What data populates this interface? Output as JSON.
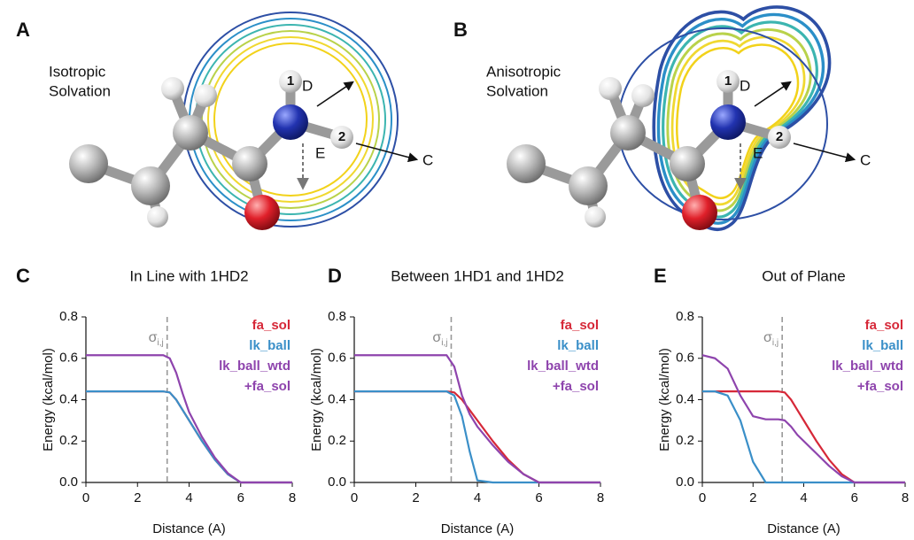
{
  "panels": [
    {
      "label": "A",
      "title": [
        "Isotropic",
        "Solvation"
      ],
      "atoms": [
        "1",
        "2"
      ],
      "directions": [
        "D",
        "C",
        "E"
      ]
    },
    {
      "label": "B",
      "title": [
        "Anisotropic",
        "Solvation"
      ],
      "atoms": [
        "1",
        "2"
      ],
      "directions": [
        "D",
        "C",
        "E"
      ]
    }
  ],
  "chart_data": [
    {
      "type": "line",
      "label": "C",
      "title": "In Line with 1HD2",
      "xlabel": "Distance (A)",
      "ylabel": "Energy (kcal/mol)",
      "xlim": [
        0,
        8
      ],
      "ylim": [
        0,
        0.8
      ],
      "xticks": [
        0,
        2,
        4,
        6,
        8
      ],
      "yticks": [
        {
          "value": 0,
          "label": "0.0"
        },
        0.2,
        0.4,
        0.6,
        0.8
      ],
      "annotation": {
        "x": 3.15,
        "label": "σ",
        "sub": "i,j"
      },
      "x": [
        0,
        0.5,
        1,
        1.5,
        2,
        2.5,
        3,
        3.25,
        3.5,
        3.75,
        4,
        4.5,
        5,
        5.5,
        6,
        7,
        8
      ],
      "series": [
        {
          "name": "fa_sol",
          "color": "#d62838",
          "values": [
            0.44,
            0.44,
            0.44,
            0.44,
            0.44,
            0.44,
            0.44,
            0.435,
            0.4,
            0.35,
            0.3,
            0.2,
            0.11,
            0.04,
            0,
            0,
            0
          ]
        },
        {
          "name": "lk_ball",
          "color": "#3a8fc8",
          "values": [
            0.44,
            0.44,
            0.44,
            0.44,
            0.44,
            0.44,
            0.44,
            0.435,
            0.4,
            0.35,
            0.3,
            0.2,
            0.11,
            0.04,
            0,
            0,
            0
          ]
        },
        {
          "name": "lk_ball_wtd +fa_sol",
          "color": "#8e44ad",
          "values": [
            0.615,
            0.615,
            0.615,
            0.615,
            0.615,
            0.615,
            0.615,
            0.6,
            0.53,
            0.43,
            0.34,
            0.22,
            0.12,
            0.045,
            0,
            0,
            0
          ]
        }
      ]
    },
    {
      "type": "line",
      "label": "D",
      "title": "Between 1HD1 and 1HD2",
      "xlabel": "Distance (A)",
      "ylabel": "Energy (kcal/mol)",
      "xlim": [
        0,
        8
      ],
      "ylim": [
        0,
        0.8
      ],
      "xticks": [
        0,
        2,
        4,
        6,
        8
      ],
      "yticks": [
        {
          "value": 0,
          "label": "0.0"
        },
        0.2,
        0.4,
        0.6,
        0.8
      ],
      "annotation": {
        "x": 3.15,
        "label": "σ",
        "sub": "i,j"
      },
      "x": [
        0,
        0.5,
        1,
        1.5,
        2,
        2.5,
        3,
        3.25,
        3.5,
        3.75,
        4,
        4.5,
        5,
        5.5,
        6,
        7,
        8
      ],
      "series": [
        {
          "name": "fa_sol",
          "color": "#d62838",
          "values": [
            0.44,
            0.44,
            0.44,
            0.44,
            0.44,
            0.44,
            0.44,
            0.435,
            0.4,
            0.35,
            0.3,
            0.2,
            0.11,
            0.04,
            0,
            0,
            0
          ]
        },
        {
          "name": "lk_ball",
          "color": "#3a8fc8",
          "values": [
            0.44,
            0.44,
            0.44,
            0.44,
            0.44,
            0.44,
            0.44,
            0.42,
            0.32,
            0.15,
            0.01,
            0,
            0,
            0,
            0,
            0,
            0
          ]
        },
        {
          "name": "lk_ball_wtd +fa_sol",
          "color": "#8e44ad",
          "values": [
            0.615,
            0.615,
            0.615,
            0.615,
            0.615,
            0.615,
            0.615,
            0.56,
            0.42,
            0.33,
            0.27,
            0.18,
            0.1,
            0.04,
            0,
            0,
            0
          ]
        }
      ]
    },
    {
      "type": "line",
      "label": "E",
      "title": "Out of Plane",
      "xlabel": "Distance (A)",
      "ylabel": "Energy (kcal/mol)",
      "xlim": [
        0,
        8
      ],
      "ylim": [
        0,
        0.8
      ],
      "xticks": [
        0,
        2,
        4,
        6,
        8
      ],
      "yticks": [
        {
          "value": 0,
          "label": "0.0"
        },
        0.2,
        0.4,
        0.6,
        0.8
      ],
      "annotation": {
        "x": 3.15,
        "label": "σ",
        "sub": "i,j"
      },
      "x": [
        0,
        0.5,
        1,
        1.5,
        2,
        2.5,
        3,
        3.25,
        3.5,
        3.75,
        4,
        4.5,
        5,
        5.5,
        6,
        7,
        8
      ],
      "series": [
        {
          "name": "fa_sol",
          "color": "#d62838",
          "values": [
            0.44,
            0.44,
            0.44,
            0.44,
            0.44,
            0.44,
            0.44,
            0.435,
            0.4,
            0.35,
            0.3,
            0.2,
            0.11,
            0.04,
            0,
            0,
            0
          ]
        },
        {
          "name": "lk_ball",
          "color": "#3a8fc8",
          "values": [
            0.44,
            0.44,
            0.42,
            0.3,
            0.1,
            0,
            0,
            0,
            0,
            0,
            0,
            0,
            0,
            0,
            0,
            0,
            0
          ]
        },
        {
          "name": "lk_ball_wtd +fa_sol",
          "color": "#8e44ad",
          "values": [
            0.615,
            0.6,
            0.55,
            0.42,
            0.32,
            0.305,
            0.305,
            0.3,
            0.27,
            0.23,
            0.2,
            0.14,
            0.08,
            0.03,
            0,
            0,
            0
          ]
        }
      ]
    }
  ]
}
